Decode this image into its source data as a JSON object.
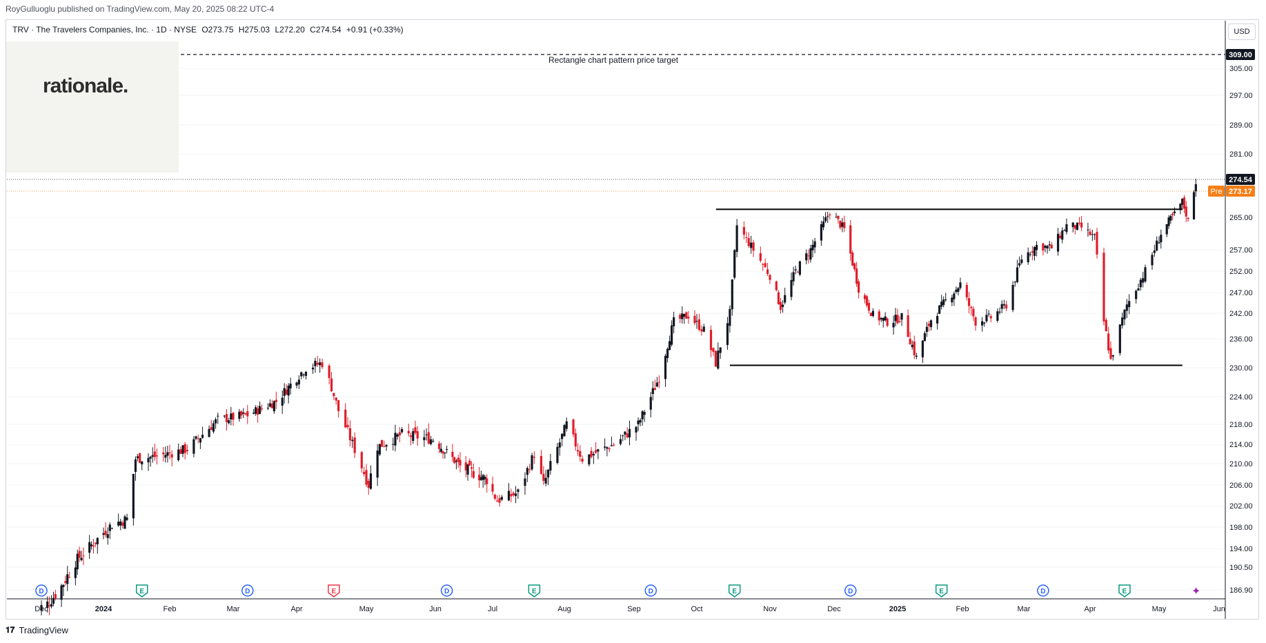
{
  "header": {
    "publisher": "RoyGulluoglu published on TradingView.com, May 20, 2025 08:22 UTC-4",
    "symbol_line": [
      "TRV · The Travelers Companies, Inc. · 1D · NYSE",
      "O273.75",
      "H275.03",
      "L272.20",
      "C274.54",
      "+0.91 (+0.33%)"
    ]
  },
  "logo_text": "rationale.",
  "currency_button": "USD",
  "annotation": "Rectangle chart pattern price target",
  "footer": {
    "brand": "TradingView"
  },
  "colors": {
    "up": "#131722",
    "down": "#e01e2b",
    "pre": "#f57f17",
    "grid": "#f0f3fa"
  },
  "chart_data": {
    "type": "candlestick",
    "y_axis_ticks": [
      186.9,
      190.5,
      194.0,
      198.0,
      202.0,
      206.0,
      210.0,
      214.0,
      218.0,
      224.0,
      230.0,
      236.0,
      242.0,
      247.0,
      252.0,
      257.0,
      265.0,
      281.0,
      289.0,
      297.0,
      305.0
    ],
    "x_axis_ticks": [
      "Dec",
      "2024",
      "Feb",
      "Mar",
      "Apr",
      "May",
      "Jun",
      "Jul",
      "Aug",
      "Sep",
      "Oct",
      "Nov",
      "Dec",
      "2025",
      "Feb",
      "Mar",
      "Apr",
      "May",
      "Jun"
    ],
    "price_labels": [
      {
        "label": "",
        "value": "309.00",
        "price": 309.0,
        "color": "#131722"
      },
      {
        "label": "",
        "value": "274.54",
        "price": 274.54,
        "color": "#131722"
      },
      {
        "label": "Pre",
        "value": "273.17",
        "price": 273.17,
        "color": "#f57f17"
      }
    ],
    "rectangle_pattern": {
      "top": 267.5,
      "bottom": 230.5,
      "start": "2024-10-15",
      "end": "2025-05-13"
    },
    "target_price": 309.0,
    "events": [
      {
        "type": "D",
        "label": "D",
        "date": "2023-12-01",
        "color": "#2962ff"
      },
      {
        "type": "E",
        "label": "E",
        "date": "2024-01-19",
        "color": "#089981"
      },
      {
        "type": "D",
        "label": "D",
        "date": "2024-03-08",
        "color": "#2962ff"
      },
      {
        "type": "E",
        "label": "E",
        "date": "2024-04-17",
        "color": "#f23645"
      },
      {
        "type": "D",
        "label": "D",
        "date": "2024-06-07",
        "color": "#2962ff"
      },
      {
        "type": "E",
        "label": "E",
        "date": "2024-07-19",
        "color": "#089981"
      },
      {
        "type": "D",
        "label": "D",
        "date": "2024-09-09",
        "color": "#2962ff"
      },
      {
        "type": "E",
        "label": "E",
        "date": "2024-10-17",
        "color": "#089981"
      },
      {
        "type": "D",
        "label": "D",
        "date": "2024-12-09",
        "color": "#2962ff"
      },
      {
        "type": "E",
        "label": "E",
        "date": "2025-01-22",
        "color": "#089981"
      },
      {
        "type": "D",
        "label": "D",
        "date": "2025-03-10",
        "color": "#2962ff"
      },
      {
        "type": "E",
        "label": "E",
        "date": "2025-04-16",
        "color": "#089981"
      }
    ],
    "close_path": [
      [
        "2023-11-28",
        183.0
      ],
      [
        "2023-12-05",
        184.5
      ],
      [
        "2023-12-12",
        188.0
      ],
      [
        "2023-12-19",
        192.0
      ],
      [
        "2023-12-27",
        195.0
      ],
      [
        "2024-01-05",
        198.5
      ],
      [
        "2024-01-12",
        199.5
      ],
      [
        "2024-01-16",
        211.0
      ],
      [
        "2024-01-26",
        211.5
      ],
      [
        "2024-02-09",
        213.0
      ],
      [
        "2024-02-23",
        219.0
      ],
      [
        "2024-03-08",
        220.0
      ],
      [
        "2024-03-22",
        223.0
      ],
      [
        "2024-04-05",
        230.0
      ],
      [
        "2024-04-12",
        231.0
      ],
      [
        "2024-04-16",
        226.0
      ],
      [
        "2024-04-19",
        221.0
      ],
      [
        "2024-05-02",
        206.0
      ],
      [
        "2024-05-06",
        213.5
      ],
      [
        "2024-05-17",
        216.0
      ],
      [
        "2024-05-31",
        215.0
      ],
      [
        "2024-06-14",
        209.5
      ],
      [
        "2024-06-28",
        207.0
      ],
      [
        "2024-07-03",
        203.0
      ],
      [
        "2024-07-12",
        204.5
      ],
      [
        "2024-07-19",
        212.0
      ],
      [
        "2024-07-23",
        206.0
      ],
      [
        "2024-08-02",
        218.0
      ],
      [
        "2024-08-09",
        211.0
      ],
      [
        "2024-08-23",
        214.0
      ],
      [
        "2024-09-03",
        218.0
      ],
      [
        "2024-09-13",
        228.0
      ],
      [
        "2024-09-20",
        240.0
      ],
      [
        "2024-09-27",
        241.5
      ],
      [
        "2024-10-04",
        238.0
      ],
      [
        "2024-10-09",
        231.0
      ],
      [
        "2024-10-15",
        242.0
      ],
      [
        "2024-10-18",
        263.0
      ],
      [
        "2024-10-25",
        257.0
      ],
      [
        "2024-11-01",
        251.0
      ],
      [
        "2024-11-06",
        243.5
      ],
      [
        "2024-11-13",
        252.0
      ],
      [
        "2024-11-20",
        257.0
      ],
      [
        "2024-11-29",
        266.5
      ],
      [
        "2024-12-06",
        262.0
      ],
      [
        "2024-12-13",
        248.0
      ],
      [
        "2024-12-20",
        241.5
      ],
      [
        "2024-12-27",
        240.0
      ],
      [
        "2025-01-03",
        241.0
      ],
      [
        "2025-01-10",
        232.0
      ],
      [
        "2025-01-17",
        240.5
      ],
      [
        "2025-01-24",
        245.0
      ],
      [
        "2025-01-31",
        249.0
      ],
      [
        "2025-02-07",
        240.0
      ],
      [
        "2025-02-14",
        241.0
      ],
      [
        "2025-02-21",
        244.0
      ],
      [
        "2025-02-28",
        255.0
      ],
      [
        "2025-03-07",
        258.0
      ],
      [
        "2025-03-14",
        257.5
      ],
      [
        "2025-03-21",
        263.0
      ],
      [
        "2025-03-28",
        262.5
      ],
      [
        "2025-04-03",
        260.0
      ],
      [
        "2025-04-07",
        240.0
      ],
      [
        "2025-04-10",
        231.5
      ],
      [
        "2025-04-17",
        244.0
      ],
      [
        "2025-04-25",
        252.0
      ],
      [
        "2025-05-02",
        261.0
      ],
      [
        "2025-05-09",
        266.0
      ],
      [
        "2025-05-13",
        270.0
      ],
      [
        "2025-05-16",
        264.0
      ],
      [
        "2025-05-19",
        273.6
      ],
      [
        "2025-05-20",
        274.54
      ]
    ]
  }
}
